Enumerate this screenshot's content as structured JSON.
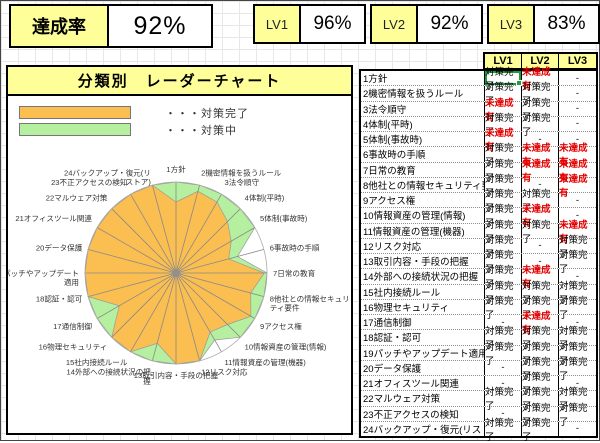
{
  "header": {
    "achievement": {
      "label": "達成率",
      "value": "92%"
    },
    "levels": [
      {
        "label": "LV1",
        "value": "96%"
      },
      {
        "label": "LV2",
        "value": "92%"
      },
      {
        "label": "LV3",
        "value": "83%"
      }
    ]
  },
  "panel": {
    "title": "分類別　レーダーチャート",
    "legend": [
      {
        "label": "・・・対策完了",
        "color": "#FBBE50"
      },
      {
        "label": "・・・対策中",
        "color": "#B5F0A0"
      }
    ]
  },
  "chart_data": {
    "type": "radar",
    "title": "分類別 レーダーチャート",
    "rmax": 1.0,
    "grid": "circle-and-spokes",
    "categories": [
      "1方針",
      "2機密情報を扱うルール",
      "3法令順守",
      "4体制(平時)",
      "5体制(事故時)",
      "6事故時の手順",
      "7日常の教育",
      "8他社との情報セキュリ\nティ要件",
      "9アクセス権",
      "10情報資産の管理(情報)",
      "11情報資産の管理(機器)",
      "12リスク対応",
      "13取引内容・手段の把握",
      "14外部への接続状況の把\n握",
      "15社内接続ルール",
      "16物理セキュリティ",
      "17通信制御",
      "18認証・認可",
      "19パッチやアップデート\n適用",
      "20データ保護",
      "21オフィスツール関連",
      "22マルウェア対策",
      "23不正アクセスの検知",
      "24バックアップ・復元(リ\nストア)"
    ],
    "series": [
      {
        "name": "対策完了",
        "color": "#FBBE50",
        "values": [
          0.78,
          0.93,
          0.9,
          0.8,
          0.7,
          0.6,
          0.97,
          0.85,
          0.95,
          0.8,
          0.75,
          1,
          1,
          0.8,
          1,
          1,
          0.72,
          1,
          1,
          1,
          1,
          1,
          1,
          1
        ]
      },
      {
        "name": "対策中",
        "color": "#B5F0A0",
        "values": [
          1,
          1,
          1,
          1,
          1,
          0.7,
          1,
          1,
          1,
          1,
          0.85,
          1,
          1,
          1,
          1,
          1,
          1,
          1,
          1,
          1,
          1,
          1,
          1,
          1
        ]
      }
    ],
    "legend_position": "top-left"
  },
  "table": {
    "columns": [
      "LV1",
      "LV2",
      "LV3"
    ],
    "incomplete_label": "未達成有",
    "complete_label": "対策完了",
    "selected_cell": {
      "row": 0,
      "col": "lv1"
    },
    "rows": [
      {
        "name": "1方針",
        "lv1": "対策完了",
        "lv2": "未達成有",
        "lv3": "-"
      },
      {
        "name": "2機密情報を扱うルール",
        "lv1": "対策完了",
        "lv2": "対策完了",
        "lv3": "-"
      },
      {
        "name": "3法令順守",
        "lv1": "未達成有",
        "lv2": "対策完了",
        "lv3": "-"
      },
      {
        "name": "4体制(平時)",
        "lv1": "対策完了",
        "lv2": "対策完了",
        "lv3": "-"
      },
      {
        "name": "5体制(事故時)",
        "lv1": "未達成有",
        "lv2": "-",
        "lv3": "-"
      },
      {
        "name": "6事故時の手順",
        "lv1": "対策完了",
        "lv2": "未達成有",
        "lv3": "未達成有"
      },
      {
        "name": "7日常の教育",
        "lv1": "対策完了",
        "lv2": "未達成有",
        "lv3": "未達成有"
      },
      {
        "name": "8他社との情報セキュリティ要件",
        "lv1": "対策完了",
        "lv2": "-",
        "lv3": "未達成有"
      },
      {
        "name": "9アクセス権",
        "lv1": "対策完了",
        "lv2": "対策完了",
        "lv3": "-"
      },
      {
        "name": "10情報資産の管理(情報)",
        "lv1": "対策完了",
        "lv2": "未達成有",
        "lv3": "-"
      },
      {
        "name": "11情報資産の管理(機器)",
        "lv1": "対策完了",
        "lv2": "対策完了",
        "lv3": "未達成有"
      },
      {
        "name": "12リスク対応",
        "lv1": "対策完了",
        "lv2": "-",
        "lv3": "対策完了"
      },
      {
        "name": "13取引内容・手段の把握",
        "lv1": "対策完了",
        "lv2": "-",
        "lv3": "対策完了"
      },
      {
        "name": "14外部への接続状況の把握",
        "lv1": "対策完了",
        "lv2": "未達成有",
        "lv3": "-"
      },
      {
        "name": "15社内接続ルール",
        "lv1": "対策完了",
        "lv2": "対策完了",
        "lv3": "対策完了"
      },
      {
        "name": "16物理セキュリティ",
        "lv1": "対策完了",
        "lv2": "対策完了",
        "lv3": "対策完了"
      },
      {
        "name": "17通信制御",
        "lv1": "-",
        "lv2": "未達成有",
        "lv3": "-"
      },
      {
        "name": "18認証・認可",
        "lv1": "対策完了",
        "lv2": "対策完了",
        "lv3": "対策完了"
      },
      {
        "name": "19パッチやアップデート適用",
        "lv1": "対策完了",
        "lv2": "対策完了",
        "lv3": "対策完了"
      },
      {
        "name": "20データ保護",
        "lv1": "-",
        "lv2": "対策完了",
        "lv3": "対策完了"
      },
      {
        "name": "21オフィスツール関連",
        "lv1": "-",
        "lv2": "対策完了",
        "lv3": "-"
      },
      {
        "name": "22マルウェア対策",
        "lv1": "対策完了",
        "lv2": "対策完了",
        "lv3": "対策完了"
      },
      {
        "name": "23不正アクセスの検知",
        "lv1": "-",
        "lv2": "対策完了",
        "lv3": "対策完了"
      },
      {
        "name": "24バックアップ・復元(リストア)",
        "lv1": "対策完了",
        "lv2": "対策完了",
        "lv3": "-"
      }
    ]
  },
  "colors": {
    "header_yellow": "#FFFF99",
    "complete_orange": "#FBBE50",
    "in_progress_green": "#B5F0A0",
    "incomplete_red": "#E60000",
    "selection_green": "#1F9E3D",
    "grid_gray": "#E7E7E7"
  }
}
